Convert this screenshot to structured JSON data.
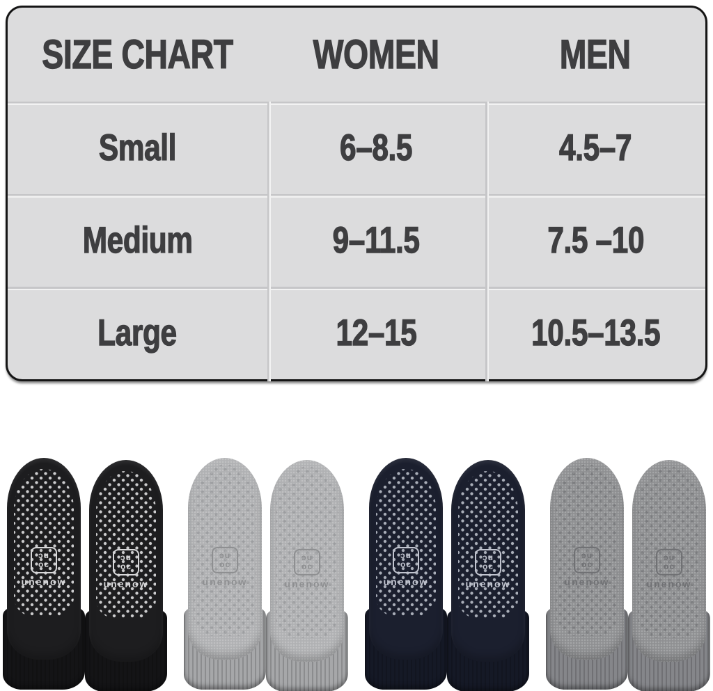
{
  "page": {
    "background": "#ffffff"
  },
  "size_chart": {
    "columns": [
      "SIZE CHART",
      "WOMEN",
      "MEN"
    ],
    "rows": [
      {
        "size": "Small",
        "women": "6–8.5",
        "men": "4.5–7"
      },
      {
        "size": "Medium",
        "women": "9–11.5",
        "men": "7.5 –10"
      },
      {
        "size": "Large",
        "women": "12–15",
        "men": "10.5–13.5"
      }
    ],
    "colors": {
      "background": "#dcdcdd",
      "border": "#151515",
      "text": "#3e3e40",
      "divider_dark": "#c6c6c8",
      "divider_light": "#f2f2f2"
    }
  },
  "chart_data": {
    "type": "table",
    "title": "SIZE CHART",
    "columns": [
      "SIZE CHART",
      "WOMEN",
      "MEN"
    ],
    "rows": [
      [
        "Small",
        "6–8.5",
        "4.5–7"
      ],
      [
        "Medium",
        "9–11.5",
        "7.5 –10"
      ],
      [
        "Large",
        "12–15",
        "10.5–13.5"
      ]
    ]
  },
  "socks": {
    "brand": "unenow",
    "monogram": [
      "ɔu",
      "oc"
    ],
    "pairs": [
      {
        "name": "black",
        "heather": false,
        "colors": {
          "sole": "#1d1d1f",
          "cuff": "#141416",
          "dots": "rgba(228,228,230,0.88)",
          "logo": "#d8d8da"
        }
      },
      {
        "name": "light-gray",
        "heather": true,
        "colors": {
          "sole": "#b0b1b3",
          "cuff": "#a6a7a9",
          "dots": "rgba(82,82,86,0.20)",
          "logo": "#8e8f91"
        }
      },
      {
        "name": "navy",
        "heather": false,
        "colors": {
          "sole": "#1b1f2e",
          "cuff": "#151926",
          "dots": "rgba(185,189,200,0.90)",
          "logo": "#c2c5d0"
        }
      },
      {
        "name": "dark-gray",
        "heather": true,
        "colors": {
          "sole": "#8f9092",
          "cuff": "#85868a",
          "dots": "rgba(58,58,62,0.24)",
          "logo": "#707174"
        }
      }
    ]
  }
}
